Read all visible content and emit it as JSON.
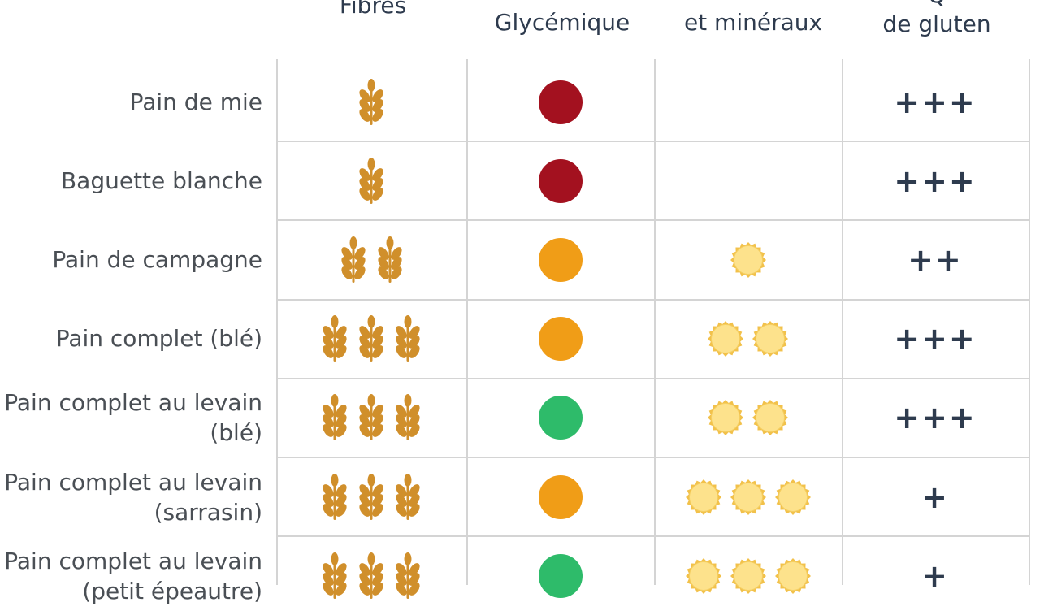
{
  "headers": {
    "fibres": "Fibres",
    "glycemique": "Glycémique",
    "mineraux": "et minéraux",
    "gluten_line1": "Q",
    "gluten_line2": "de gluten"
  },
  "colors": {
    "high": "#a3111f",
    "medium": "#f09d17",
    "low": "#2ebb6a",
    "wheat": "#d08f2b",
    "sun_fill": "#fde28c",
    "sun_edge": "#f2c14a",
    "grid": "#d4d4d4"
  },
  "icons": {
    "fibres": "wheat-icon",
    "mineraux": "sun-icon"
  },
  "rows": [
    {
      "label_line1": "Pain de mie",
      "label_line2": "",
      "fibres": 1,
      "glycemic": "high",
      "mineraux": 0,
      "gluten": "+++"
    },
    {
      "label_line1": "Baguette blanche",
      "label_line2": "",
      "fibres": 1,
      "glycemic": "high",
      "mineraux": 0,
      "gluten": "+++"
    },
    {
      "label_line1": "Pain de campagne",
      "label_line2": "",
      "fibres": 2,
      "glycemic": "medium",
      "mineraux": 1,
      "gluten": "++"
    },
    {
      "label_line1": "Pain complet (blé)",
      "label_line2": "",
      "fibres": 3,
      "glycemic": "medium",
      "mineraux": 2,
      "gluten": "+++"
    },
    {
      "label_line1": "Pain complet au levain",
      "label_line2": "(blé)",
      "fibres": 3,
      "glycemic": "low",
      "mineraux": 2,
      "gluten": "+++"
    },
    {
      "label_line1": "Pain complet au levain",
      "label_line2": "(sarrasin)",
      "fibres": 3,
      "glycemic": "medium",
      "mineraux": 3,
      "gluten": "+"
    },
    {
      "label_line1": "Pain complet au levain",
      "label_line2": "(petit épeautre)",
      "fibres": 3,
      "glycemic": "low",
      "mineraux": 3,
      "gluten": "+"
    }
  ]
}
